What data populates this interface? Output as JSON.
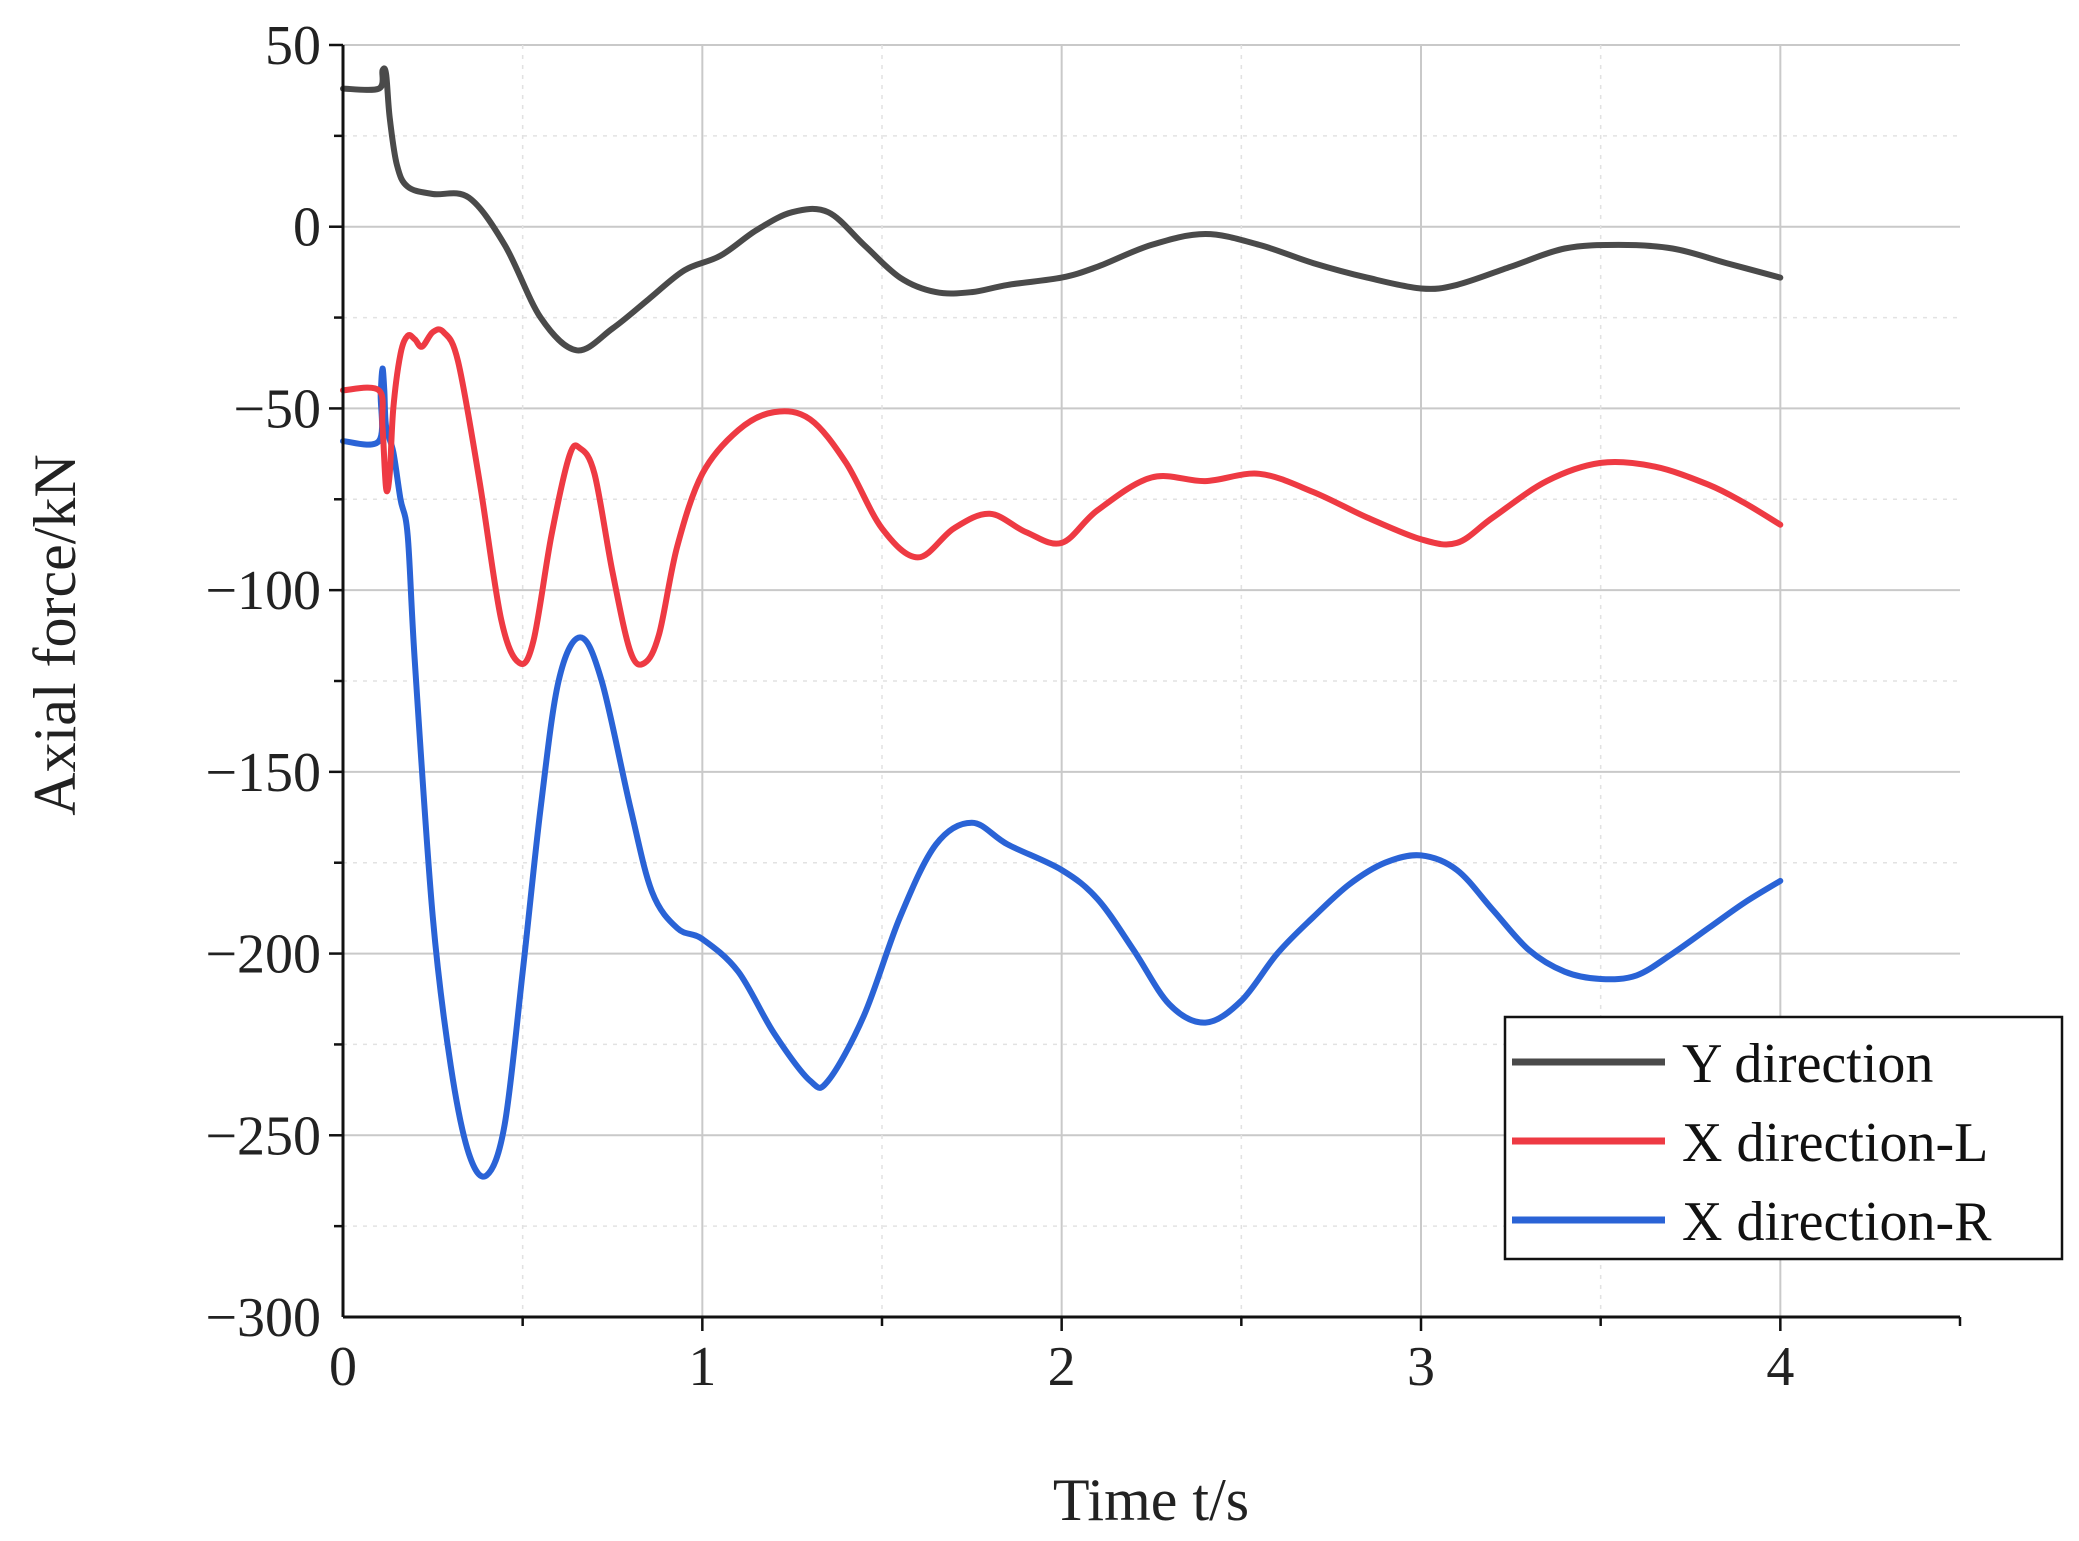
{
  "chart_data": {
    "type": "line",
    "title": "",
    "xlabel": "Time t/s",
    "ylabel": "Axial force/kN",
    "xlim": [
      0,
      4.5
    ],
    "ylim": [
      -300,
      50
    ],
    "x_ticks": [
      0,
      1,
      2,
      3,
      4
    ],
    "x_tick_labels": [
      "0",
      "1",
      "2",
      "3",
      "4"
    ],
    "y_ticks": [
      50,
      0,
      -50,
      -100,
      -150,
      -200,
      -250,
      -300
    ],
    "y_tick_labels": [
      "50",
      "0",
      "−50",
      "−100",
      "−150",
      "−200",
      "−250",
      "−300"
    ],
    "grid": true,
    "legend_position": "bottom-right",
    "series": [
      {
        "name": "Y direction",
        "color": "#4a4a4a",
        "points": [
          [
            0,
            38
          ],
          [
            0.1,
            38
          ],
          [
            0.11,
            43
          ],
          [
            0.12,
            42
          ],
          [
            0.13,
            30
          ],
          [
            0.15,
            17
          ],
          [
            0.18,
            11
          ],
          [
            0.25,
            9
          ],
          [
            0.35,
            8
          ],
          [
            0.45,
            -5
          ],
          [
            0.55,
            -25
          ],
          [
            0.65,
            -34
          ],
          [
            0.75,
            -28
          ],
          [
            0.85,
            -20
          ],
          [
            0.95,
            -12
          ],
          [
            1.05,
            -8
          ],
          [
            1.15,
            -1
          ],
          [
            1.25,
            4
          ],
          [
            1.35,
            4
          ],
          [
            1.45,
            -5
          ],
          [
            1.55,
            -14
          ],
          [
            1.65,
            -18
          ],
          [
            1.75,
            -18
          ],
          [
            1.85,
            -16
          ],
          [
            2.0,
            -14
          ],
          [
            2.1,
            -11
          ],
          [
            2.25,
            -5
          ],
          [
            2.4,
            -2
          ],
          [
            2.55,
            -5
          ],
          [
            2.7,
            -10
          ],
          [
            2.85,
            -14
          ],
          [
            3.0,
            -17
          ],
          [
            3.1,
            -16
          ],
          [
            3.25,
            -11
          ],
          [
            3.4,
            -6
          ],
          [
            3.55,
            -5
          ],
          [
            3.7,
            -6
          ],
          [
            3.85,
            -10
          ],
          [
            4.0,
            -14
          ]
        ]
      },
      {
        "name": "X direction-L",
        "color": "#ee3a43",
        "points": [
          [
            0,
            -45
          ],
          [
            0.1,
            -45
          ],
          [
            0.11,
            -55
          ],
          [
            0.12,
            -72
          ],
          [
            0.13,
            -68
          ],
          [
            0.14,
            -50
          ],
          [
            0.16,
            -35
          ],
          [
            0.18,
            -30
          ],
          [
            0.2,
            -31
          ],
          [
            0.22,
            -33
          ],
          [
            0.25,
            -29
          ],
          [
            0.28,
            -29
          ],
          [
            0.32,
            -37
          ],
          [
            0.38,
            -70
          ],
          [
            0.44,
            -108
          ],
          [
            0.49,
            -120
          ],
          [
            0.53,
            -114
          ],
          [
            0.58,
            -85
          ],
          [
            0.63,
            -63
          ],
          [
            0.66,
            -61
          ],
          [
            0.7,
            -68
          ],
          [
            0.75,
            -95
          ],
          [
            0.8,
            -117
          ],
          [
            0.84,
            -120
          ],
          [
            0.88,
            -112
          ],
          [
            0.93,
            -88
          ],
          [
            1.0,
            -68
          ],
          [
            1.1,
            -56
          ],
          [
            1.2,
            -51
          ],
          [
            1.3,
            -53
          ],
          [
            1.4,
            -65
          ],
          [
            1.5,
            -83
          ],
          [
            1.6,
            -91
          ],
          [
            1.7,
            -83
          ],
          [
            1.8,
            -79
          ],
          [
            1.9,
            -84
          ],
          [
            2.0,
            -87
          ],
          [
            2.1,
            -78
          ],
          [
            2.25,
            -69
          ],
          [
            2.4,
            -70
          ],
          [
            2.55,
            -68
          ],
          [
            2.7,
            -73
          ],
          [
            2.85,
            -80
          ],
          [
            3.0,
            -86
          ],
          [
            3.1,
            -87
          ],
          [
            3.2,
            -80
          ],
          [
            3.35,
            -70
          ],
          [
            3.5,
            -65
          ],
          [
            3.65,
            -66
          ],
          [
            3.8,
            -71
          ],
          [
            3.9,
            -76
          ],
          [
            4.0,
            -82
          ]
        ]
      },
      {
        "name": "X direction-R",
        "color": "#2a63d6",
        "points": [
          [
            0,
            -59
          ],
          [
            0.1,
            -59
          ],
          [
            0.105,
            -46
          ],
          [
            0.11,
            -39
          ],
          [
            0.115,
            -45
          ],
          [
            0.12,
            -55
          ],
          [
            0.14,
            -62
          ],
          [
            0.16,
            -75
          ],
          [
            0.18,
            -85
          ],
          [
            0.2,
            -120
          ],
          [
            0.25,
            -190
          ],
          [
            0.3,
            -231
          ],
          [
            0.35,
            -255
          ],
          [
            0.4,
            -261
          ],
          [
            0.45,
            -247
          ],
          [
            0.5,
            -205
          ],
          [
            0.55,
            -160
          ],
          [
            0.6,
            -125
          ],
          [
            0.66,
            -113
          ],
          [
            0.72,
            -125
          ],
          [
            0.8,
            -160
          ],
          [
            0.86,
            -183
          ],
          [
            0.93,
            -193
          ],
          [
            1.0,
            -196
          ],
          [
            1.1,
            -205
          ],
          [
            1.2,
            -222
          ],
          [
            1.3,
            -235
          ],
          [
            1.35,
            -235
          ],
          [
            1.45,
            -217
          ],
          [
            1.55,
            -190
          ],
          [
            1.65,
            -170
          ],
          [
            1.75,
            -164
          ],
          [
            1.85,
            -170
          ],
          [
            2.0,
            -177
          ],
          [
            2.1,
            -185
          ],
          [
            2.2,
            -199
          ],
          [
            2.3,
            -214
          ],
          [
            2.4,
            -219
          ],
          [
            2.5,
            -213
          ],
          [
            2.6,
            -200
          ],
          [
            2.7,
            -190
          ],
          [
            2.8,
            -181
          ],
          [
            2.9,
            -175
          ],
          [
            3.0,
            -173
          ],
          [
            3.1,
            -177
          ],
          [
            3.2,
            -188
          ],
          [
            3.3,
            -199
          ],
          [
            3.4,
            -205
          ],
          [
            3.5,
            -207
          ],
          [
            3.6,
            -206
          ],
          [
            3.7,
            -200
          ],
          [
            3.8,
            -193
          ],
          [
            3.9,
            -186
          ],
          [
            4.0,
            -180
          ]
        ]
      }
    ]
  }
}
